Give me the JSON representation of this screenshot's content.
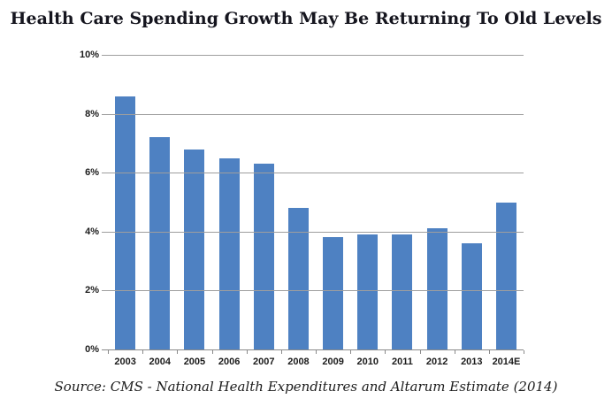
{
  "title": "Health Care Spending Growth May Be Returning To Old Levels",
  "source": "Source: CMS - National Health Expenditures and Altarum Estimate (2014)",
  "colors": {
    "bar": "#4E81C2",
    "gridline": "#9e9e9e",
    "axis": "#8a8a8a",
    "title_text": "#15151e",
    "tick_text": "#1b1b1b"
  },
  "chart_data": {
    "type": "bar",
    "title": "Health Care Spending Growth May Be Returning To Old Levels",
    "categories": [
      "2003",
      "2004",
      "2005",
      "2006",
      "2007",
      "2008",
      "2009",
      "2010",
      "2011",
      "2012",
      "2013",
      "2014E"
    ],
    "values": [
      8.6,
      7.2,
      6.8,
      6.5,
      6.3,
      4.8,
      3.8,
      3.9,
      3.9,
      4.1,
      3.6,
      5.0
    ],
    "xlabel": "",
    "ylabel": "",
    "ylim": [
      0,
      10
    ],
    "yticks": [
      {
        "value": 0,
        "label": "0%"
      },
      {
        "value": 2,
        "label": "2%"
      },
      {
        "value": 4,
        "label": "4%"
      },
      {
        "value": 6,
        "label": "6%"
      },
      {
        "value": 8,
        "label": "8%"
      },
      {
        "value": 10,
        "label": "10%"
      }
    ],
    "grid": true,
    "legend": "none",
    "annotation": "Source: CMS - National Health Expenditures and Altarum Estimate (2014)"
  }
}
